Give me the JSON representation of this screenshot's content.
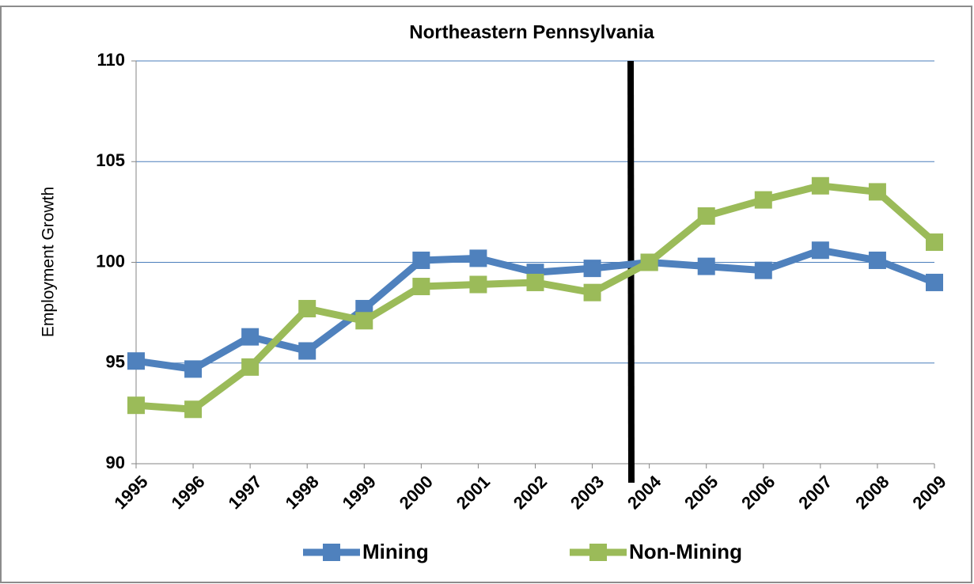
{
  "chart_data": {
    "type": "line",
    "title": "Northeastern Pennsylvania",
    "y_label": "Employment Growth",
    "categories": [
      "1995",
      "1996",
      "1997",
      "1998",
      "1999",
      "2000",
      "2001",
      "2002",
      "2003",
      "2004",
      "2005",
      "2006",
      "2007",
      "2008",
      "2009"
    ],
    "series": [
      {
        "name": "Mining",
        "color": "#4f81bd",
        "values": [
          95.1,
          94.7,
          96.3,
          95.6,
          97.7,
          100.1,
          100.2,
          99.5,
          99.7,
          100.0,
          99.8,
          99.6,
          100.6,
          100.1,
          99.0
        ]
      },
      {
        "name": "Non-Mining",
        "color": "#9bbb59",
        "values": [
          92.9,
          92.7,
          94.8,
          97.7,
          97.1,
          98.8,
          98.9,
          99.0,
          98.5,
          100.0,
          102.3,
          103.1,
          103.8,
          103.5,
          101.0
        ]
      }
    ],
    "ylim": [
      90,
      110
    ],
    "yticks": [
      90,
      95,
      100,
      105,
      110
    ],
    "grid": true,
    "legend": "bottom"
  }
}
